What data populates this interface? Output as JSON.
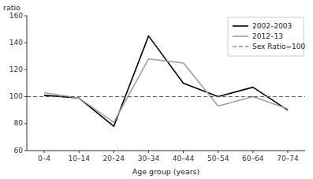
{
  "chart_data": {
    "type": "line",
    "x_label": "Age group (years)",
    "y_label": "ratio",
    "categories": [
      "0–4",
      "10–14",
      "20–24",
      "30–34",
      "40–44",
      "50–54",
      "60–64",
      "70–74"
    ],
    "series": [
      {
        "name": "2002–2003",
        "color": "#000000",
        "line_style": "solid",
        "values": [
          101,
          99,
          78,
          145,
          110,
          100,
          107,
          90
        ]
      },
      {
        "name": "2012–13",
        "color": "#a0a0a0",
        "line_style": "solid",
        "values": [
          103,
          99,
          81,
          128,
          125,
          93,
          100,
          91
        ]
      },
      {
        "name": "Sex Ratio=100",
        "type": "hline",
        "color": "#555555",
        "line_style": "dashed",
        "value": 100
      }
    ],
    "ylim": [
      60,
      160
    ],
    "yticks": [
      60,
      80,
      100,
      120,
      140,
      160
    ],
    "grid": false,
    "legend": "upper-right"
  }
}
